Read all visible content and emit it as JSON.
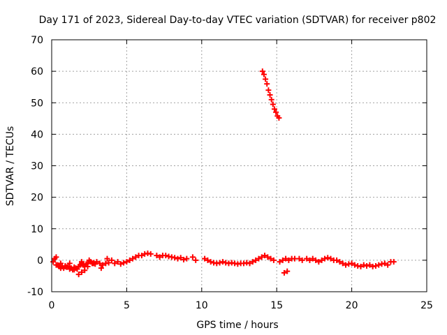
{
  "chart_data": {
    "type": "scatter",
    "title": "Day 171 of 2023, Sidereal Day-to-day VTEC variation (SDTVAR) for receiver p802",
    "xlabel": "GPS time / hours",
    "ylabel": "SDTVAR / TECUs",
    "xlim": [
      0,
      25
    ],
    "ylim": [
      -10,
      70
    ],
    "xticks": [
      0,
      5,
      10,
      15,
      20,
      25
    ],
    "yticks": [
      -10,
      0,
      10,
      20,
      30,
      40,
      50,
      60,
      70
    ],
    "grid": true,
    "legend": "none",
    "marker": "plus",
    "series": [
      {
        "name": "SDTVAR",
        "color": "#ff0000",
        "x": [
          0.1,
          0.2,
          0.3,
          0.4,
          0.5,
          0.6,
          0.7,
          0.8,
          0.9,
          1.0,
          1.1,
          1.2,
          1.3,
          1.4,
          1.5,
          1.6,
          1.7,
          1.8,
          1.9,
          2.0,
          2.1,
          2.2,
          2.3,
          2.4,
          2.5,
          2.6,
          2.7,
          2.8,
          2.9,
          3.0,
          3.2,
          3.4,
          3.6,
          3.8,
          4.0,
          4.2,
          4.4,
          4.6,
          4.8,
          5.0,
          5.2,
          5.4,
          5.6,
          5.8,
          6.0,
          6.2,
          6.4,
          6.6,
          7.0,
          7.2,
          7.4,
          7.6,
          7.8,
          8.0,
          8.2,
          8.4,
          8.6,
          8.8,
          9.0,
          9.4,
          9.6,
          10.2,
          10.4,
          10.6,
          10.8,
          11.0,
          11.2,
          11.4,
          11.6,
          11.8,
          12.0,
          12.2,
          12.4,
          12.6,
          12.8,
          13.0,
          13.2,
          13.4,
          13.6,
          13.8,
          14.0,
          14.2,
          14.4,
          14.6,
          14.8,
          15.2,
          15.4,
          15.6,
          15.8,
          16.0,
          16.2,
          16.5,
          16.7,
          17.0,
          17.2,
          17.4,
          17.6,
          17.8,
          18.0,
          18.2,
          18.4,
          18.6,
          18.8,
          19.0,
          19.2,
          19.4,
          19.6,
          19.8,
          20.0,
          20.2,
          20.4,
          20.6,
          20.8,
          21.0,
          21.2,
          21.4,
          21.6,
          21.8,
          22.0,
          22.2,
          22.4,
          22.6,
          22.8,
          0.3,
          0.6,
          0.9,
          1.2,
          1.5,
          2.0,
          2.4,
          2.8,
          3.3,
          3.7,
          14.05,
          14.15,
          14.25,
          14.35,
          14.45,
          14.55,
          14.65,
          14.75,
          14.85,
          14.95,
          15.05,
          15.15,
          15.5,
          15.7,
          1.8,
          2.0,
          2.2
        ],
        "y": [
          -0.5,
          0.5,
          1.0,
          -1.5,
          -2.0,
          -1.0,
          -2.0,
          -2.5,
          -1.8,
          -2.2,
          -2.0,
          -2.8,
          -2.5,
          -3.0,
          -2.2,
          -2.5,
          -2.8,
          -2.0,
          -1.5,
          -1.0,
          -1.5,
          -2.0,
          -1.2,
          -1.0,
          0.0,
          -0.5,
          -1.0,
          -0.8,
          -1.2,
          -0.5,
          -1.0,
          -1.5,
          -1.0,
          -0.8,
          0.0,
          -1.0,
          -0.5,
          -1.2,
          -0.8,
          -0.5,
          0.0,
          0.5,
          1.0,
          1.5,
          1.5,
          2.0,
          2.2,
          2.0,
          1.5,
          1.0,
          1.5,
          1.5,
          1.2,
          1.0,
          0.8,
          0.5,
          0.8,
          0.2,
          0.5,
          1.0,
          0.0,
          0.5,
          0.0,
          -0.5,
          -0.8,
          -1.0,
          -0.8,
          -0.5,
          -0.8,
          -1.0,
          -0.8,
          -1.0,
          -1.2,
          -1.0,
          -1.0,
          -0.8,
          -1.0,
          -0.5,
          0.0,
          0.5,
          1.0,
          1.5,
          1.0,
          0.5,
          0.0,
          -0.5,
          0.0,
          0.5,
          0.0,
          0.5,
          0.5,
          0.5,
          0.0,
          0.5,
          0.0,
          0.5,
          0.0,
          -0.5,
          0.0,
          0.5,
          0.8,
          0.5,
          0.0,
          0.0,
          -0.5,
          -1.0,
          -1.5,
          -1.2,
          -1.0,
          -1.5,
          -1.8,
          -2.0,
          -1.5,
          -1.8,
          -1.5,
          -2.0,
          -1.8,
          -1.5,
          -1.2,
          -1.0,
          -1.5,
          -0.5,
          -0.5,
          -1.5,
          -2.5,
          -2.0,
          -1.0,
          -3.0,
          -0.5,
          -2.0,
          -1.0,
          -2.5,
          0.5,
          60.0,
          59.0,
          57.5,
          56.0,
          54.0,
          52.5,
          51.0,
          49.5,
          48.0,
          47.0,
          45.8,
          45.2,
          -4.0,
          -3.5,
          -4.5,
          -3.8,
          -3.2
        ]
      }
    ]
  }
}
